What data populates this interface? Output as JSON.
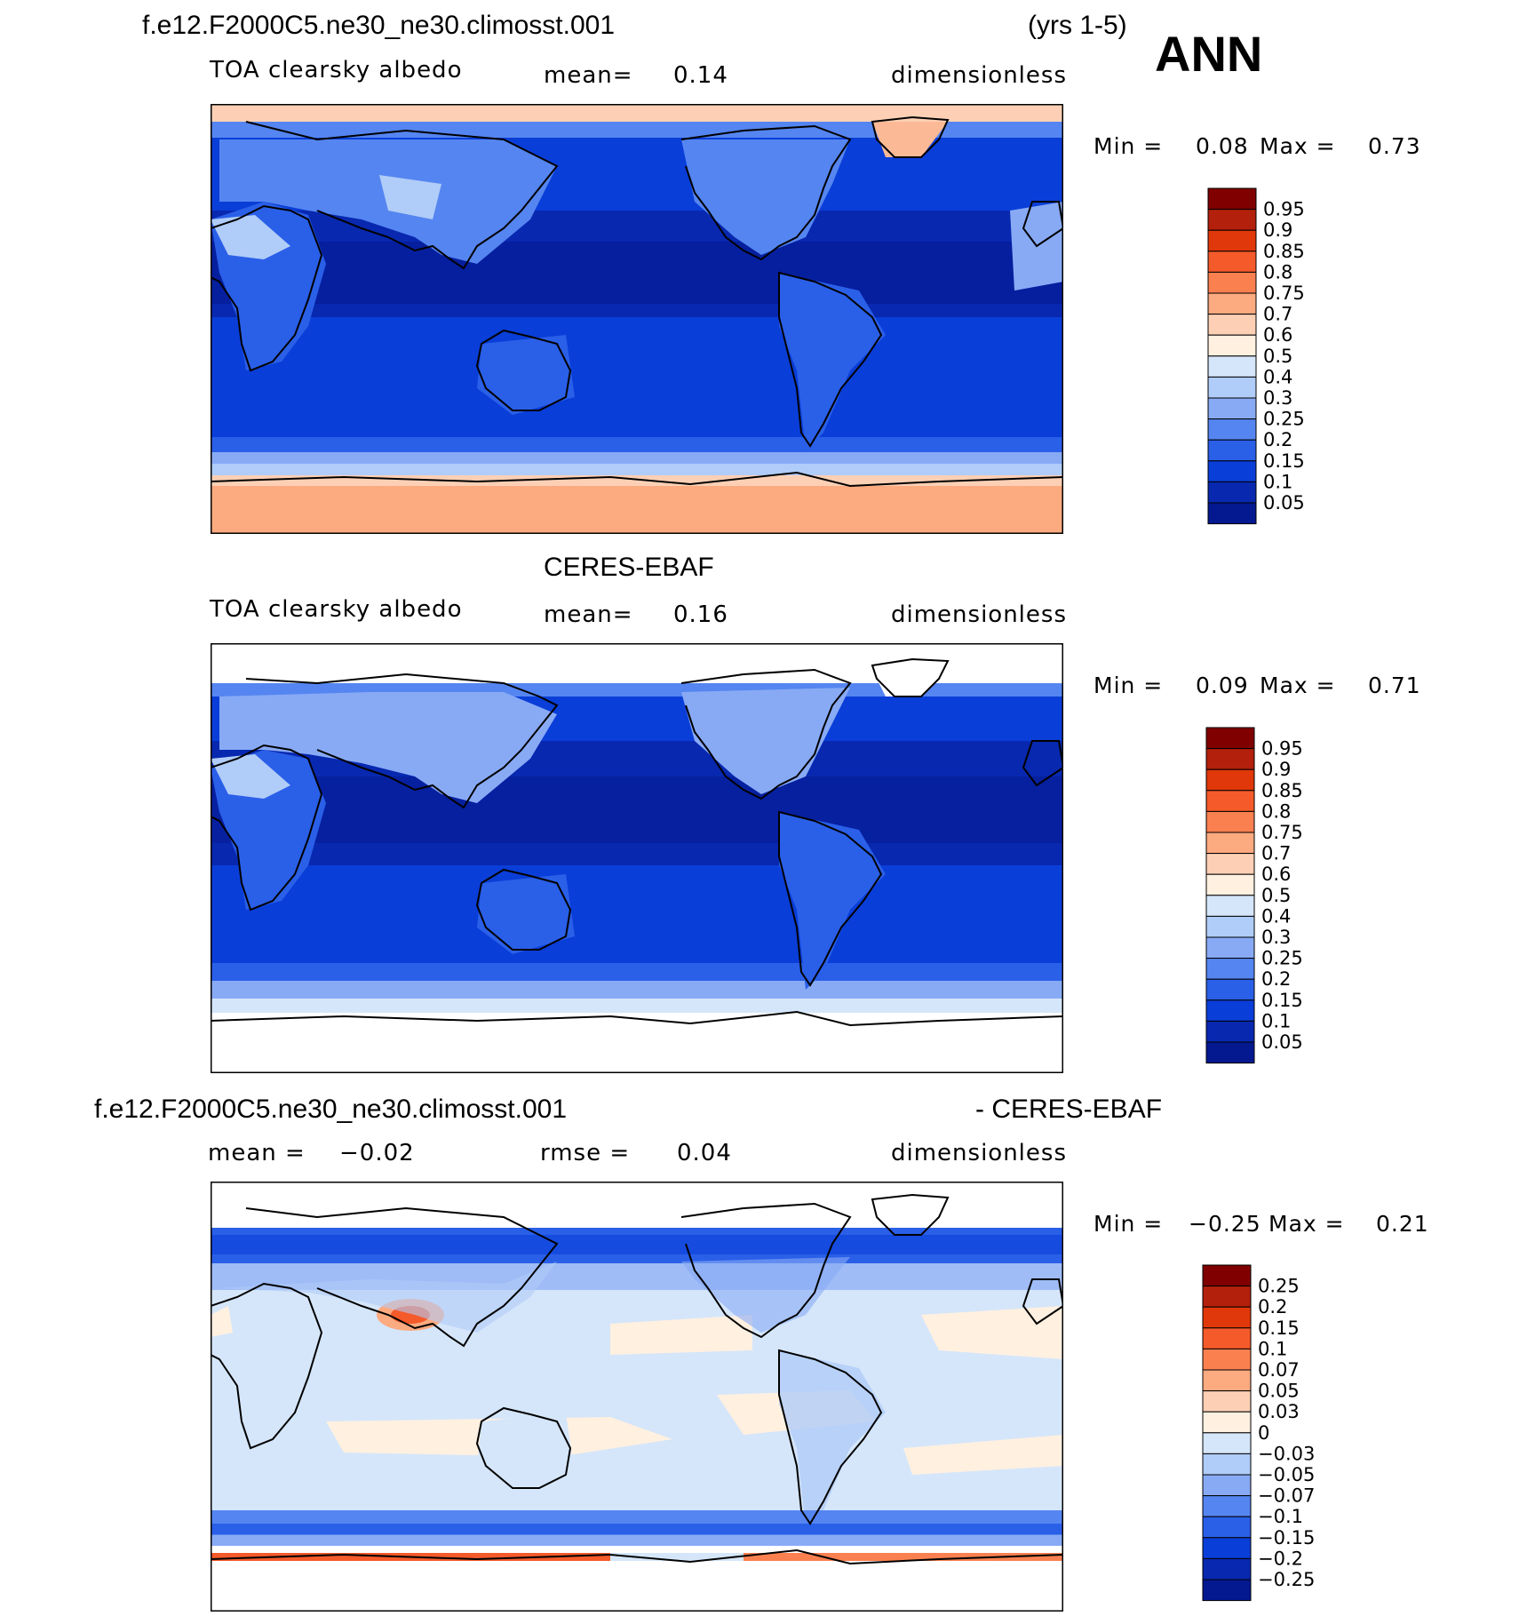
{
  "header": {
    "case_name": "f.e12.F2000C5.ne30_ne30.climosst.001",
    "years": "(yrs 1-5)",
    "season": "ANN"
  },
  "panels": [
    {
      "title": "",
      "variable": "TOA clearsky albedo",
      "mean_label": "mean=",
      "mean_value": "0.14",
      "units": "dimensionless",
      "min_label": "Min =",
      "min_value": "0.08",
      "max_label": "Max =",
      "max_value": "0.73",
      "colorbar": [
        "0.95",
        "0.9",
        "0.85",
        "0.8",
        "0.75",
        "0.7",
        "0.6",
        "0.5",
        "0.4",
        "0.3",
        "0.25",
        "0.2",
        "0.15",
        "0.1",
        "0.05"
      ]
    },
    {
      "title": "CERES-EBAF",
      "variable": "TOA clearsky albedo",
      "mean_label": "mean=",
      "mean_value": "0.16",
      "units": "dimensionless",
      "min_label": "Min =",
      "min_value": "0.09",
      "max_label": "Max =",
      "max_value": "0.71",
      "colorbar": [
        "0.95",
        "0.9",
        "0.85",
        "0.8",
        "0.75",
        "0.7",
        "0.6",
        "0.5",
        "0.4",
        "0.3",
        "0.25",
        "0.2",
        "0.15",
        "0.1",
        "0.05"
      ]
    },
    {
      "title_left": "f.e12.F2000C5.ne30_ne30.climosst.001",
      "title_right": "- CERES-EBAF",
      "mean_label": "mean =",
      "mean_value": "−0.02",
      "rmse_label": "rmse =",
      "rmse_value": "0.04",
      "units": "dimensionless",
      "min_label": "Min =",
      "min_value": "−0.25",
      "max_label": "Max =",
      "max_value": "0.21",
      "colorbar": [
        "0.25",
        "0.2",
        "0.15",
        "0.1",
        "0.07",
        "0.05",
        "0.03",
        "0",
        "−0.03",
        "−0.05",
        "−0.07",
        "−0.1",
        "−0.15",
        "−0.2",
        "−0.25"
      ]
    }
  ],
  "colors": {
    "abs_scale": [
      "#800000",
      "#b3200c",
      "#e0380a",
      "#f55a2a",
      "#fa8050",
      "#fcaa80",
      "#fdd0b5",
      "#fff0e0",
      "#d5e6fa",
      "#b0ccf8",
      "#88aaf5",
      "#5585f0",
      "#2a5fe8",
      "#0a3ed8",
      "#0828b0",
      "#041890"
    ],
    "diff_scale": [
      "#800000",
      "#b3200c",
      "#e0380a",
      "#f55a2a",
      "#fa8050",
      "#fcaa80",
      "#fdd0b5",
      "#fff0e0",
      "#d5e6fa",
      "#b0ccf8",
      "#88aaf5",
      "#5585f0",
      "#2a5fe8",
      "#0a3ed8",
      "#0828b0",
      "#041890"
    ]
  }
}
